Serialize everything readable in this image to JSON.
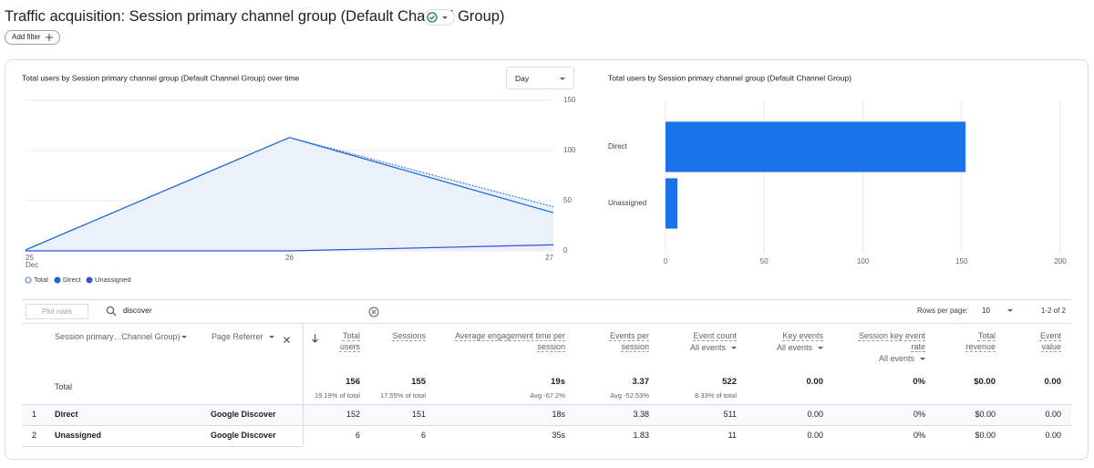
{
  "header": {
    "title": "Traffic acquisition: Session primary channel group (Default Channel Group)",
    "add_filter": "Add filter"
  },
  "controls": {
    "interval": "Day"
  },
  "chart_data": [
    {
      "type": "line",
      "title": "Total users by Session primary channel group (Default Channel Group) over time",
      "categories": [
        "25",
        "26",
        "27"
      ],
      "x_month": "Dec",
      "ylim": [
        0,
        150
      ],
      "yticks": [
        0,
        50,
        100,
        150
      ],
      "grid": true,
      "series": [
        {
          "name": "Total",
          "color": "#4a7fd4",
          "area_color": "#eaf1fb",
          "marker": "hollow",
          "dashed": true,
          "values": [
            1,
            113,
            44
          ]
        },
        {
          "name": "Direct",
          "color": "#1a66d1",
          "values": [
            1,
            113,
            38
          ]
        },
        {
          "name": "Unassigned",
          "color": "#3d4fd6",
          "values": [
            0,
            0,
            6
          ]
        }
      ]
    },
    {
      "type": "hbar",
      "title": "Total users by Session primary channel group (Default Channel Group)",
      "categories": [
        "Direct",
        "Unassigned"
      ],
      "values": [
        152,
        6
      ],
      "color": "#1a73e8",
      "xlim": [
        0,
        200
      ],
      "xticks": [
        0,
        50,
        100,
        150,
        200
      ],
      "grid": true
    }
  ],
  "table": {
    "plot_rows": "Plot rows",
    "search": "discover",
    "rows_per_page_label": "Rows per page:",
    "rows_per_page": "10",
    "range": "1-2 of 2",
    "dimensions": [
      "Session primary…Channel Group)",
      "Page Referrer"
    ],
    "metrics": [
      {
        "name": "Total users"
      },
      {
        "name": "Sessions"
      },
      {
        "name": "Average engagement time per session"
      },
      {
        "name": "Events per session"
      },
      {
        "name": "Event count",
        "filter": "All events"
      },
      {
        "name": "Key events",
        "filter": "All events"
      },
      {
        "name": "Session key event rate",
        "filter": "All events"
      },
      {
        "name": "Total revenue"
      },
      {
        "name": "Event value"
      }
    ],
    "total": {
      "label": "Total",
      "cells": [
        {
          "value": "156",
          "note": "19.19% of total"
        },
        {
          "value": "155",
          "note": "17.55% of total"
        },
        {
          "value": "19s",
          "note": "Avg -67.2%"
        },
        {
          "value": "3.37",
          "note": "Avg -52.53%"
        },
        {
          "value": "522",
          "note": "8.33% of total"
        },
        {
          "value": "0.00"
        },
        {
          "value": "0%"
        },
        {
          "value": "$0.00"
        },
        {
          "value": "0.00"
        }
      ]
    },
    "rows": [
      [
        "1",
        "Direct",
        "Google Discover",
        "152",
        "151",
        "18s",
        "3.38",
        "511",
        "0.00",
        "0%",
        "$0.00",
        "0.00"
      ],
      [
        "2",
        "Unassigned",
        "Google Discover",
        "6",
        "6",
        "35s",
        "1.83",
        "11",
        "0.00",
        "0%",
        "$0.00",
        "0.00"
      ]
    ]
  }
}
